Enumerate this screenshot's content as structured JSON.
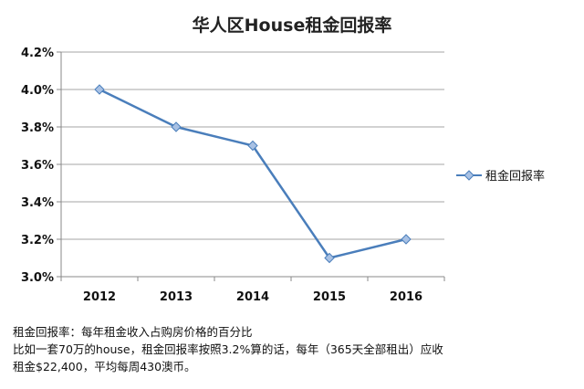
{
  "chart_data": {
    "type": "line",
    "title": "华人区House租金回报率",
    "categories": [
      "2012",
      "2013",
      "2014",
      "2015",
      "2016"
    ],
    "series": [
      {
        "name": "租金回报率",
        "values": [
          4.0,
          3.8,
          3.7,
          3.1,
          3.2
        ]
      }
    ],
    "ylim": [
      3.0,
      4.2
    ],
    "yticks": [
      3.0,
      3.2,
      3.4,
      3.6,
      3.8,
      4.0,
      4.2
    ],
    "ytick_labels": [
      "3.0%",
      "3.2%",
      "3.4%",
      "3.6%",
      "3.8%",
      "4.0%",
      "4.2%"
    ],
    "xlabel": "",
    "ylabel": "",
    "grid": "horizontal",
    "legend_position": "right",
    "line_color": "#4a7ebb",
    "marker_fill": "#a8c1e4"
  },
  "caption": {
    "line1": "租金回报率：每年租金收入占购房价格的百分比",
    "line2": "比如一套70万的house，租金回报率按照3.2%算的话，每年（365天全部租出）应收",
    "line3": "租金$22,400，平均每周430澳币。"
  }
}
